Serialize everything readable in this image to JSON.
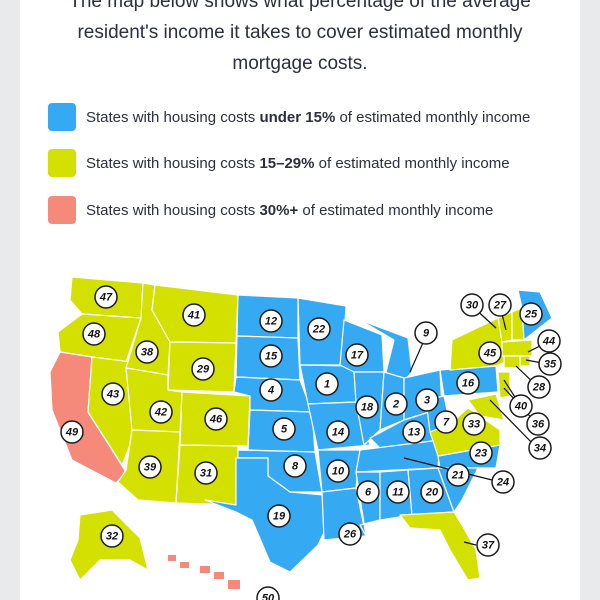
{
  "intro": {
    "line1": "The map below shows what percentage of the average",
    "line2": "resident's income it takes to cover estimated monthly",
    "line3": "mortgage costs."
  },
  "legend": [
    {
      "color": "#35aaf2",
      "prefix": "States with housing costs ",
      "bold": "under 15%",
      "suffix": " of estimated monthly income"
    },
    {
      "color": "#d4e000",
      "prefix": "States with housing costs ",
      "bold": "15–29%",
      "suffix": " of estimated monthly income"
    },
    {
      "color": "#f58a7a",
      "prefix": "States with housing costs ",
      "bold": "30%+",
      "suffix": " of estimated monthly income"
    }
  ],
  "colors": {
    "blue": "#35aaf2",
    "yellow": "#d4e000",
    "red": "#f58a7a"
  },
  "state_ranks": [
    "1",
    "2",
    "3",
    "4",
    "5",
    "6",
    "7",
    "8",
    "9",
    "10",
    "11",
    "12",
    "13",
    "14",
    "15",
    "16",
    "17",
    "18",
    "19",
    "20",
    "21",
    "22",
    "23",
    "24",
    "25",
    "26",
    "27",
    "28",
    "29",
    "30",
    "31",
    "32",
    "33",
    "34",
    "35",
    "36",
    "37",
    "38",
    "39",
    "40",
    "41",
    "42",
    "43",
    "44",
    "45",
    "46",
    "47",
    "48",
    "49",
    "50"
  ]
}
